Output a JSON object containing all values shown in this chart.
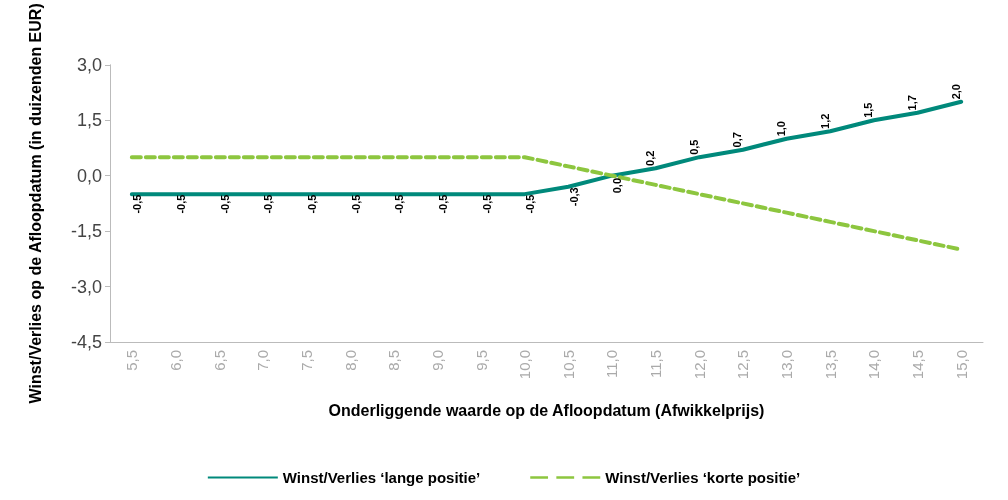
{
  "chart_data": {
    "type": "line",
    "xlabel": "Onderliggende waarde op de Afloopdatum (Afwikkelprijs)",
    "ylabel": "Winst/Verlies op de Afloopdatum (in duizenden EUR)",
    "categories": [
      "5,5",
      "6,0",
      "6,5",
      "7,0",
      "7,5",
      "8,0",
      "8,5",
      "9,0",
      "9,5",
      "10,0",
      "10,5",
      "11,0",
      "11,5",
      "12,0",
      "12,5",
      "13,0",
      "13,5",
      "14,0",
      "14,5",
      "15,0"
    ],
    "series": [
      {
        "name": "Winst/Verlies ‘lange positie’",
        "color": "#00897b",
        "line_style": "solid",
        "values": [
          -0.5,
          -0.5,
          -0.5,
          -0.5,
          -0.5,
          -0.5,
          -0.5,
          -0.5,
          -0.5,
          -0.5,
          -0.3,
          0.0,
          0.2,
          0.5,
          0.7,
          1.0,
          1.2,
          1.5,
          1.7,
          2.0
        ],
        "value_labels": [
          "-0,5",
          "-0,5",
          "-0,5",
          "-0,5",
          "-0,5",
          "-0,5",
          "-0,5",
          "-0,5",
          "-0,5",
          "-0,5",
          "-0,3",
          "0,0",
          "0,2",
          "0,5",
          "0,7",
          "1,0",
          "1,2",
          "1,5",
          "1,7",
          "2,0"
        ]
      },
      {
        "name": "Winst/Verlies ‘korte positie’",
        "color": "#8dc63f",
        "line_style": "dashed",
        "values": [
          0.5,
          0.5,
          0.5,
          0.5,
          0.5,
          0.5,
          0.5,
          0.5,
          0.5,
          0.5,
          0.25,
          0,
          -0.25,
          -0.5,
          -0.75,
          -1.0,
          -1.25,
          -1.5,
          -1.75,
          -2.0
        ]
      }
    ],
    "ylim": [
      -4.5,
      3.0
    ],
    "yticks": [
      {
        "value": -4.5,
        "label": "-4,5"
      },
      {
        "value": -3,
        "label": "-3,0"
      },
      {
        "value": -1.5,
        "label": "-1,5"
      },
      {
        "value": 0,
        "label": "0,0"
      },
      {
        "value": 1.5,
        "label": "1,5"
      },
      {
        "value": 3,
        "label": "3,0"
      }
    ],
    "grid": false,
    "legend": "bottom",
    "marker": "none"
  }
}
